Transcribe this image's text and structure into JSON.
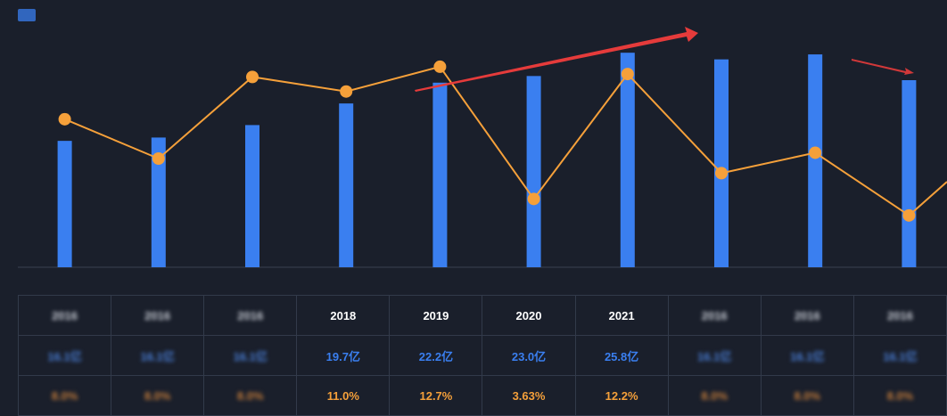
{
  "chart_data": {
    "type": "bar",
    "categories": [
      "",
      "",
      "",
      "2018",
      "2019",
      "2020",
      "2021",
      "",
      "",
      ""
    ],
    "series": [
      {
        "values": [
          null,
          null,
          null,
          19.7,
          22.2,
          23.0,
          25.8,
          null,
          null,
          null
        ]
      },
      {
        "values": [
          null,
          null,
          null,
          11.0,
          12.7,
          3.63,
          12.2,
          null,
          null,
          null
        ]
      }
    ],
    "colors": {
      "bar": "#3a7ff0",
      "line": "#f5a03a",
      "arrow": "#e53b3b"
    }
  },
  "table": {
    "years": [
      "",
      "",
      "",
      "2018",
      "2019",
      "2020",
      "2021",
      "",
      "",
      ""
    ],
    "revenue": [
      "",
      "",
      "",
      "19.7亿",
      "22.2亿",
      "23.0亿",
      "25.8亿",
      "",
      "",
      ""
    ],
    "growth": [
      "",
      "",
      "",
      "11.0%",
      "12.7%",
      "3.63%",
      "12.2%",
      "",
      "",
      ""
    ]
  },
  "icons": {
    "logo": "chart-logo-icon"
  }
}
